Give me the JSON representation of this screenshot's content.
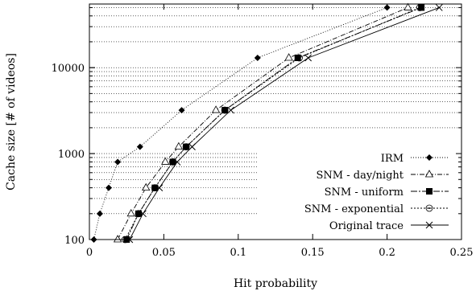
{
  "chart_data": {
    "type": "line",
    "title": "",
    "xlabel": "Hit probability",
    "ylabel": "Cache size [# of videos]",
    "xlim": [
      0,
      0.25
    ],
    "ylim": [
      100,
      55000
    ],
    "yscale": "log",
    "grid": "horizontal dotted",
    "legend_position": "bottom-right",
    "x_ticks": [
      {
        "value": 0,
        "label": "0"
      },
      {
        "value": 0.05,
        "label": "0.05"
      },
      {
        "value": 0.1,
        "label": "0.1"
      },
      {
        "value": 0.15,
        "label": "0.15"
      },
      {
        "value": 0.2,
        "label": "0.2"
      },
      {
        "value": 0.25,
        "label": "0.25"
      }
    ],
    "y_ticks": [
      {
        "value": 100,
        "label": "100"
      },
      {
        "value": 1000,
        "label": "1000"
      },
      {
        "value": 10000,
        "label": "10000"
      }
    ],
    "series": [
      {
        "name": "IRM",
        "marker": "diamond",
        "dash": "1,2",
        "points": [
          [
            0.003,
            100
          ],
          [
            0.007,
            200
          ],
          [
            0.013,
            400
          ],
          [
            0.019,
            800
          ],
          [
            0.034,
            1200
          ],
          [
            0.062,
            3200
          ],
          [
            0.113,
            13000
          ],
          [
            0.2,
            50000
          ]
        ]
      },
      {
        "name": "SNM - day/night",
        "marker": "triangle",
        "dash": "6,2,1,2",
        "points": [
          [
            0.019,
            100
          ],
          [
            0.028,
            200
          ],
          [
            0.038,
            400
          ],
          [
            0.051,
            800
          ],
          [
            0.06,
            1200
          ],
          [
            0.085,
            3200
          ],
          [
            0.134,
            13000
          ],
          [
            0.214,
            50000
          ]
        ]
      },
      {
        "name": "SNM - uniform",
        "marker": "square",
        "dash": "8,2,2,2",
        "points": [
          [
            0.025,
            100
          ],
          [
            0.033,
            200
          ],
          [
            0.044,
            400
          ],
          [
            0.056,
            800
          ],
          [
            0.065,
            1200
          ],
          [
            0.091,
            3200
          ],
          [
            0.14,
            13000
          ],
          [
            0.223,
            50000
          ]
        ]
      },
      {
        "name": "SNM - exponential",
        "marker": "circle",
        "dash": "2,2",
        "points": [
          [
            0.024,
            100
          ],
          [
            0.033,
            200
          ],
          [
            0.044,
            400
          ],
          [
            0.056,
            800
          ],
          [
            0.065,
            1200
          ],
          [
            0.091,
            3200
          ],
          [
            0.141,
            13000
          ],
          [
            0.222,
            50000
          ]
        ]
      },
      {
        "name": "Original trace",
        "marker": "cross",
        "dash": "",
        "points": [
          [
            0.027,
            100
          ],
          [
            0.036,
            200
          ],
          [
            0.047,
            400
          ],
          [
            0.059,
            800
          ],
          [
            0.069,
            1200
          ],
          [
            0.095,
            3200
          ],
          [
            0.147,
            13000
          ],
          [
            0.235,
            50000
          ]
        ]
      }
    ]
  }
}
